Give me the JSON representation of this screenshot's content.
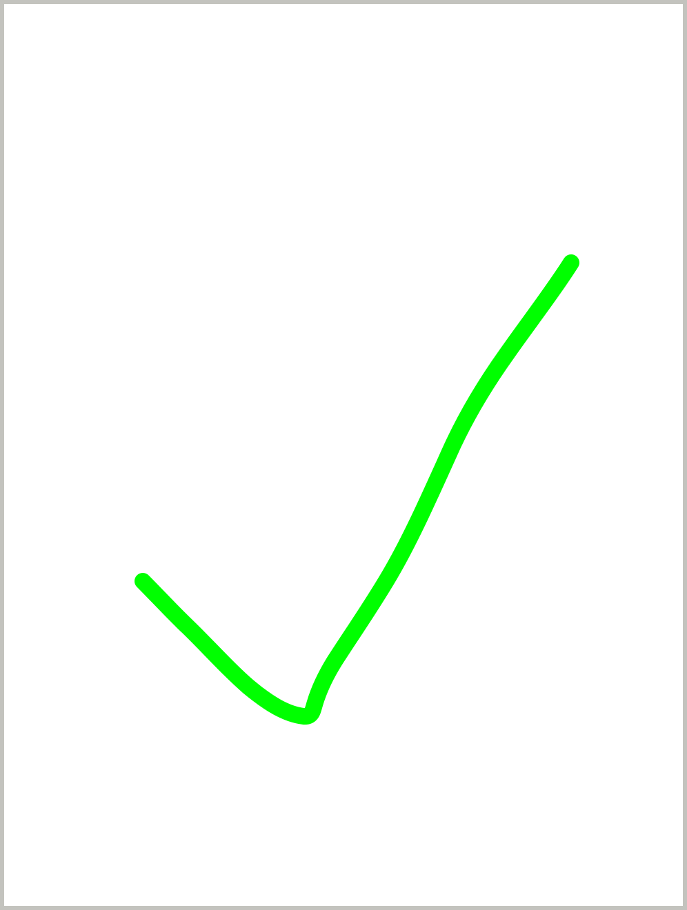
{
  "canvas": {
    "stroke_color": "#00ff00"
  }
}
